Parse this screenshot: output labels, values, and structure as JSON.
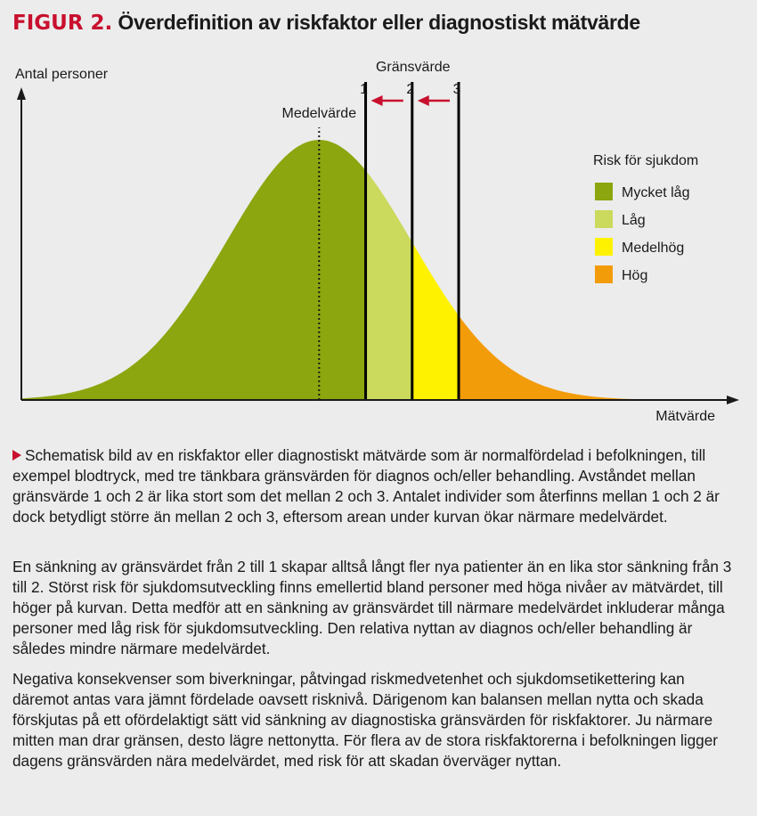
{
  "header": {
    "figure_label": "FIGUR 2.",
    "title": "Överdefinition av riskfaktor eller diagnostiskt mätvärde"
  },
  "chart_data": {
    "type": "area",
    "title": "Överdefinition av riskfaktor eller diagnostiskt mätvärde",
    "ylabel": "Antal personer",
    "xlabel": "Mätvärde",
    "distribution": "normal",
    "mean": 0,
    "sd": 1,
    "xlim": [
      -3.2,
      4.4
    ],
    "mean_label": "Medelvärde",
    "thresholds_title": "Gränsvärde",
    "thresholds": [
      {
        "label": "1",
        "x": 0.5
      },
      {
        "label": "2",
        "x": 1.0
      },
      {
        "label": "3",
        "x": 1.5
      }
    ],
    "arrows": [
      {
        "from": "2",
        "to": "1"
      },
      {
        "from": "3",
        "to": "2"
      }
    ],
    "legend_title": "Risk för sjukdom",
    "regions": [
      {
        "label": "Mycket låg",
        "color": "#8ba60e",
        "from": -3.2,
        "to": 0.5
      },
      {
        "label": "Låg",
        "color": "#cbd95c",
        "from": 0.5,
        "to": 1.0
      },
      {
        "label": "Medelhög",
        "color": "#fff200",
        "from": 1.0,
        "to": 1.5
      },
      {
        "label": "Hög",
        "color": "#f39c0a",
        "from": 1.5,
        "to": 4.4
      }
    ]
  },
  "caption": {
    "p1": "Schematisk bild av en riskfaktor eller diagnostiskt mätvärde som är normalfördelad i befolkningen, till exempel blodtryck, med tre tänkbara gränsvärden för diagnos och/eller behandling. Avståndet mellan gränsvärde 1 och 2 är lika stort som det mellan 2 och 3. Antalet individer som återfinns mellan 1 och 2 är dock betydligt större än mellan 2 och 3, eftersom arean under kurvan ökar närmare medelvärdet.",
    "p2": "En sänkning av gränsvärdet från 2 till 1 skapar alltså långt fler nya patienter än en lika stor sänkning från 3 till 2. Störst risk för sjukdomsutveckling finns emellertid bland personer med höga nivåer av mätvärdet, till höger på kurvan. Detta medför att en sänkning av gränsvärdet till närmare medelvärdet inkluderar många personer med låg risk för sjukdomsutveckling. Den relativa nyttan av diagnos och/eller behandling är således mindre närmare medelvärdet.",
    "p3": "Negativa konsekvenser som biverkningar, påtvingad riskmedvetenhet och sjukdomsetikettering kan däremot antas vara jämnt fördelade oavsett risknivå. Därigenom kan balansen mellan nytta och skada förskjutas på ett ofördelaktigt sätt vid sänkning av diagnostiska gränsvärden för riskfaktorer. Ju närmare mitten man drar gränsen, desto lägre nettonytta. För flera av de stora riskfaktorerna i befolkningen ligger dagens gränsvärden nära medelvärdet, med risk för att skadan överväger nyttan."
  }
}
